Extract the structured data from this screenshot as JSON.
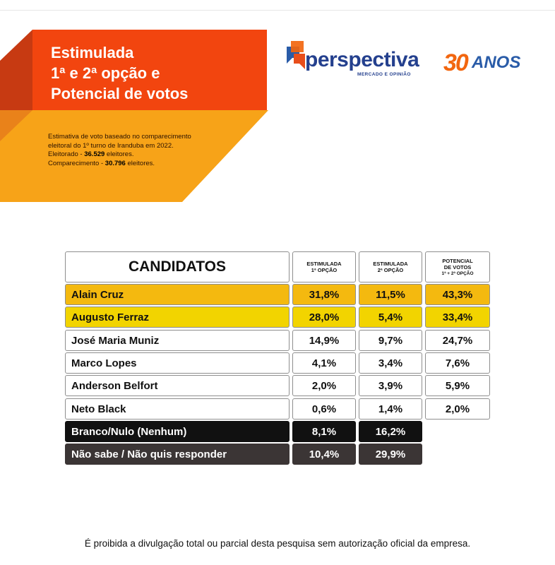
{
  "header": {
    "title_lines": [
      "Estimulada",
      "1ª e 2ª opção e",
      "Potencial de votos"
    ],
    "desc_line1": "Estimativa de voto baseado no comparecimento",
    "desc_line2": "eleitoral do 1º turno de Iranduba em 2022.",
    "desc_line3_label": "Eleitorado - ",
    "desc_line3_value": "36.529",
    "desc_line3_suffix": " eleitores.",
    "desc_line4_label": "Comparecimento - ",
    "desc_line4_value": "30.796",
    "desc_line4_suffix": " eleitores."
  },
  "brand": {
    "logo_word": "perspectiva",
    "logo_sub": "MERCADO E OPINIÃO",
    "anos_number": "30",
    "anos_word": "ANOS",
    "colors": {
      "orange": "#f2450f",
      "blue": "#24408e",
      "gold": "#f4b90f",
      "yellow": "#f2d400"
    }
  },
  "chart_data": {
    "type": "table",
    "columns": [
      "CANDIDATOS",
      "ESTIMULADA 1ª OPÇÃO",
      "ESTIMULADA 2ª OPÇÃO",
      "POTENCIAL DE VOTOS 1ª + 2ª OPÇÃO"
    ],
    "column_header_lines": [
      [
        "CANDIDATOS"
      ],
      [
        "ESTIMULADA",
        "1ª OPÇÃO"
      ],
      [
        "ESTIMULADA",
        "2ª OPÇÃO"
      ],
      [
        "POTENCIAL",
        "DE VOTOS",
        "1ª + 2ª OPÇÃO"
      ]
    ],
    "rows": [
      {
        "name": "Alain Cruz",
        "first": "31,8%",
        "second": "11,5%",
        "potential": "43,3%",
        "style": "gold"
      },
      {
        "name": "Augusto Ferraz",
        "first": "28,0%",
        "second": "5,4%",
        "potential": "33,4%",
        "style": "yellow"
      },
      {
        "name": "José Maria Muniz",
        "first": "14,9%",
        "second": "9,7%",
        "potential": "24,7%",
        "style": "white"
      },
      {
        "name": "Marco Lopes",
        "first": "4,1%",
        "second": "3,4%",
        "potential": "7,6%",
        "style": "white"
      },
      {
        "name": "Anderson Belfort",
        "first": "2,0%",
        "second": "3,9%",
        "potential": "5,9%",
        "style": "white"
      },
      {
        "name": "Neto Black",
        "first": "0,6%",
        "second": "1,4%",
        "potential": "2,0%",
        "style": "white"
      },
      {
        "name": "Branco/Nulo (Nenhum)",
        "first": "8,1%",
        "second": "16,2%",
        "potential": null,
        "style": "black"
      },
      {
        "name": "Não sabe / Não quis responder",
        "first": "10,4%",
        "second": "29,9%",
        "potential": null,
        "style": "dark"
      }
    ]
  },
  "footer": {
    "text": "É proibida a divulgação total ou parcial desta pesquisa sem autorização oficial da empresa."
  }
}
